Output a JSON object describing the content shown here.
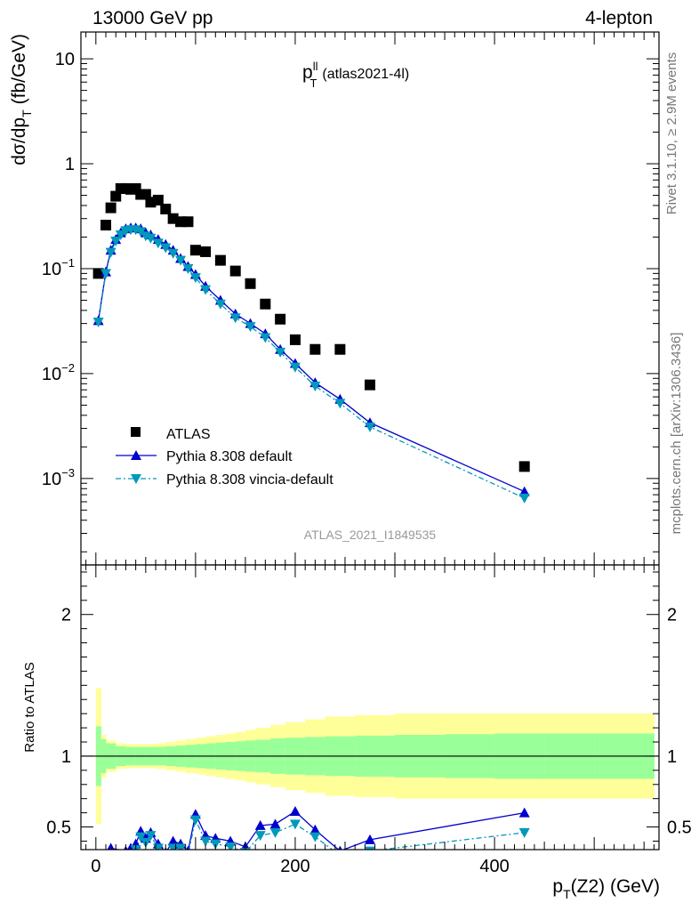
{
  "header": {
    "left": "13000 GeV pp",
    "right": "4-lepton"
  },
  "side_labels": {
    "rivet": "Rivet 3.1.10, ≥ 2.9M events",
    "mcplots": "mcplots.cern.ch [arXiv:1306.3436]"
  },
  "watermark": "ATLAS_2021_I1849535",
  "chart_data": [
    {
      "type": "scatter",
      "title": {
        "main": "p",
        "sup": "ll",
        "sub": "T",
        "tail": "(atlas2021-4l)"
      },
      "ylabel": {
        "main": "dσ/dp",
        "sub": "T",
        "tail": "(fb/GeV)"
      },
      "xlim": [
        -15,
        565
      ],
      "ylim": [
        0.00015,
        18
      ],
      "yscale": "log",
      "yticks": [
        {
          "value": 0.001,
          "base": "10",
          "exp": "−3"
        },
        {
          "value": 0.01,
          "base": "10",
          "exp": "−2"
        },
        {
          "value": 0.1,
          "base": "10",
          "exp": "−1"
        },
        {
          "value": 1,
          "base": "1",
          "exp": ""
        },
        {
          "value": 10,
          "base": "10",
          "exp": ""
        }
      ],
      "legend_position": "bottom-left",
      "series": [
        {
          "name": "ATLAS",
          "color": "#000000",
          "marker": "square",
          "x": [
            2.5,
            10,
            15,
            20,
            25,
            30,
            35,
            40,
            45,
            50,
            55,
            62.5,
            70,
            77.5,
            85,
            92.5,
            100,
            110,
            125,
            140,
            155,
            170,
            185,
            200,
            220,
            245,
            275,
            430
          ],
          "y": [
            0.09,
            0.26,
            0.38,
            0.49,
            0.58,
            0.58,
            0.57,
            0.58,
            0.51,
            0.51,
            0.43,
            0.45,
            0.37,
            0.3,
            0.28,
            0.28,
            0.15,
            0.145,
            0.12,
            0.095,
            0.072,
            0.046,
            0.033,
            0.021,
            0.017,
            0.017,
            0.0078,
            0.0013
          ]
        },
        {
          "name": "Pythia 8.308 default",
          "color": "#0000cc",
          "marker": "triangle-up",
          "x": [
            2.5,
            10,
            15,
            20,
            25,
            30,
            35,
            40,
            45,
            50,
            55,
            62.5,
            70,
            77.5,
            85,
            92.5,
            100,
            110,
            125,
            140,
            155,
            170,
            185,
            200,
            220,
            245,
            275,
            430
          ],
          "y": [
            0.032,
            0.093,
            0.15,
            0.19,
            0.22,
            0.24,
            0.245,
            0.245,
            0.24,
            0.22,
            0.21,
            0.19,
            0.17,
            0.15,
            0.125,
            0.105,
            0.088,
            0.068,
            0.05,
            0.037,
            0.03,
            0.024,
            0.017,
            0.0125,
            0.0082,
            0.0057,
            0.0034,
            0.00075
          ]
        },
        {
          "name": "Pythia 8.308 vincia-default",
          "color": "#0099bb",
          "marker": "triangle-down",
          "x": [
            2.5,
            10,
            15,
            20,
            25,
            30,
            35,
            40,
            45,
            50,
            55,
            62.5,
            70,
            77.5,
            85,
            92.5,
            100,
            110,
            125,
            140,
            155,
            170,
            185,
            200,
            220,
            245,
            275,
            430
          ],
          "y": [
            0.031,
            0.09,
            0.143,
            0.183,
            0.21,
            0.23,
            0.235,
            0.235,
            0.225,
            0.205,
            0.195,
            0.175,
            0.158,
            0.14,
            0.12,
            0.1,
            0.082,
            0.063,
            0.046,
            0.034,
            0.028,
            0.022,
            0.016,
            0.0115,
            0.0076,
            0.0052,
            0.0031,
            0.00065
          ]
        }
      ]
    },
    {
      "type": "scatter",
      "ylabel": "Ratio to ATLAS",
      "xlabel": {
        "main": "p",
        "sub": "T",
        "tail": "(Z2) (GeV)"
      },
      "xlim": [
        -15,
        565
      ],
      "ylim": [
        0.34,
        2.35
      ],
      "xticks": [
        0,
        200,
        400
      ],
      "yticks": [
        0.5,
        1,
        2
      ],
      "reference_line": 1,
      "bands": {
        "edges": [
          0,
          5,
          10,
          20,
          30,
          40,
          50,
          60,
          70,
          80,
          90,
          100,
          110,
          120,
          130,
          140,
          150,
          160,
          175,
          190,
          210,
          230,
          260,
          300,
          350,
          400,
          450,
          500,
          560
        ],
        "stat_color": "#99ff99",
        "total_color": "#ffff99",
        "inner_halfwidth": [
          0.21,
          0.12,
          0.09,
          0.07,
          0.065,
          0.065,
          0.065,
          0.065,
          0.07,
          0.075,
          0.08,
          0.085,
          0.09,
          0.095,
          0.1,
          0.105,
          0.11,
          0.115,
          0.125,
          0.13,
          0.135,
          0.14,
          0.145,
          0.15,
          0.155,
          0.16,
          0.16,
          0.16
        ],
        "outer_halfwidth": [
          0.48,
          0.15,
          0.11,
          0.09,
          0.085,
          0.085,
          0.085,
          0.09,
          0.1,
          0.11,
          0.12,
          0.13,
          0.14,
          0.15,
          0.16,
          0.17,
          0.185,
          0.2,
          0.22,
          0.24,
          0.26,
          0.28,
          0.29,
          0.3,
          0.3,
          0.3,
          0.3,
          0.3
        ]
      },
      "series": [
        {
          "name": "Pythia 8.308 default",
          "color": "#0000cc",
          "marker": "triangle-up",
          "x": [
            15,
            30,
            35,
            40,
            45,
            50,
            55,
            62.5,
            70,
            77.5,
            85,
            92.5,
            100,
            110,
            120,
            135,
            150,
            165,
            180,
            200,
            220,
            245,
            275,
            430
          ],
          "y": [
            0.35,
            0.33,
            0.35,
            0.38,
            0.47,
            0.42,
            0.46,
            0.38,
            0.32,
            0.4,
            0.38,
            0.33,
            0.59,
            0.44,
            0.42,
            0.4,
            0.36,
            0.51,
            0.52,
            0.61,
            0.48,
            0.33,
            0.41,
            0.6
          ]
        },
        {
          "name": "Pythia 8.308 vincia-default",
          "color": "#0099bb",
          "marker": "triangle-down",
          "x": [
            15,
            30,
            35,
            40,
            45,
            50,
            55,
            62.5,
            70,
            77.5,
            85,
            92.5,
            100,
            110,
            120,
            135,
            150,
            165,
            180,
            200,
            220,
            245,
            275,
            430
          ],
          "y": [
            0.3,
            0.29,
            0.31,
            0.34,
            0.43,
            0.39,
            0.44,
            0.35,
            0.3,
            0.35,
            0.35,
            0.31,
            0.55,
            0.4,
            0.38,
            0.36,
            0.32,
            0.44,
            0.46,
            0.52,
            0.43,
            0.3,
            0.33,
            0.46
          ]
        }
      ]
    }
  ]
}
